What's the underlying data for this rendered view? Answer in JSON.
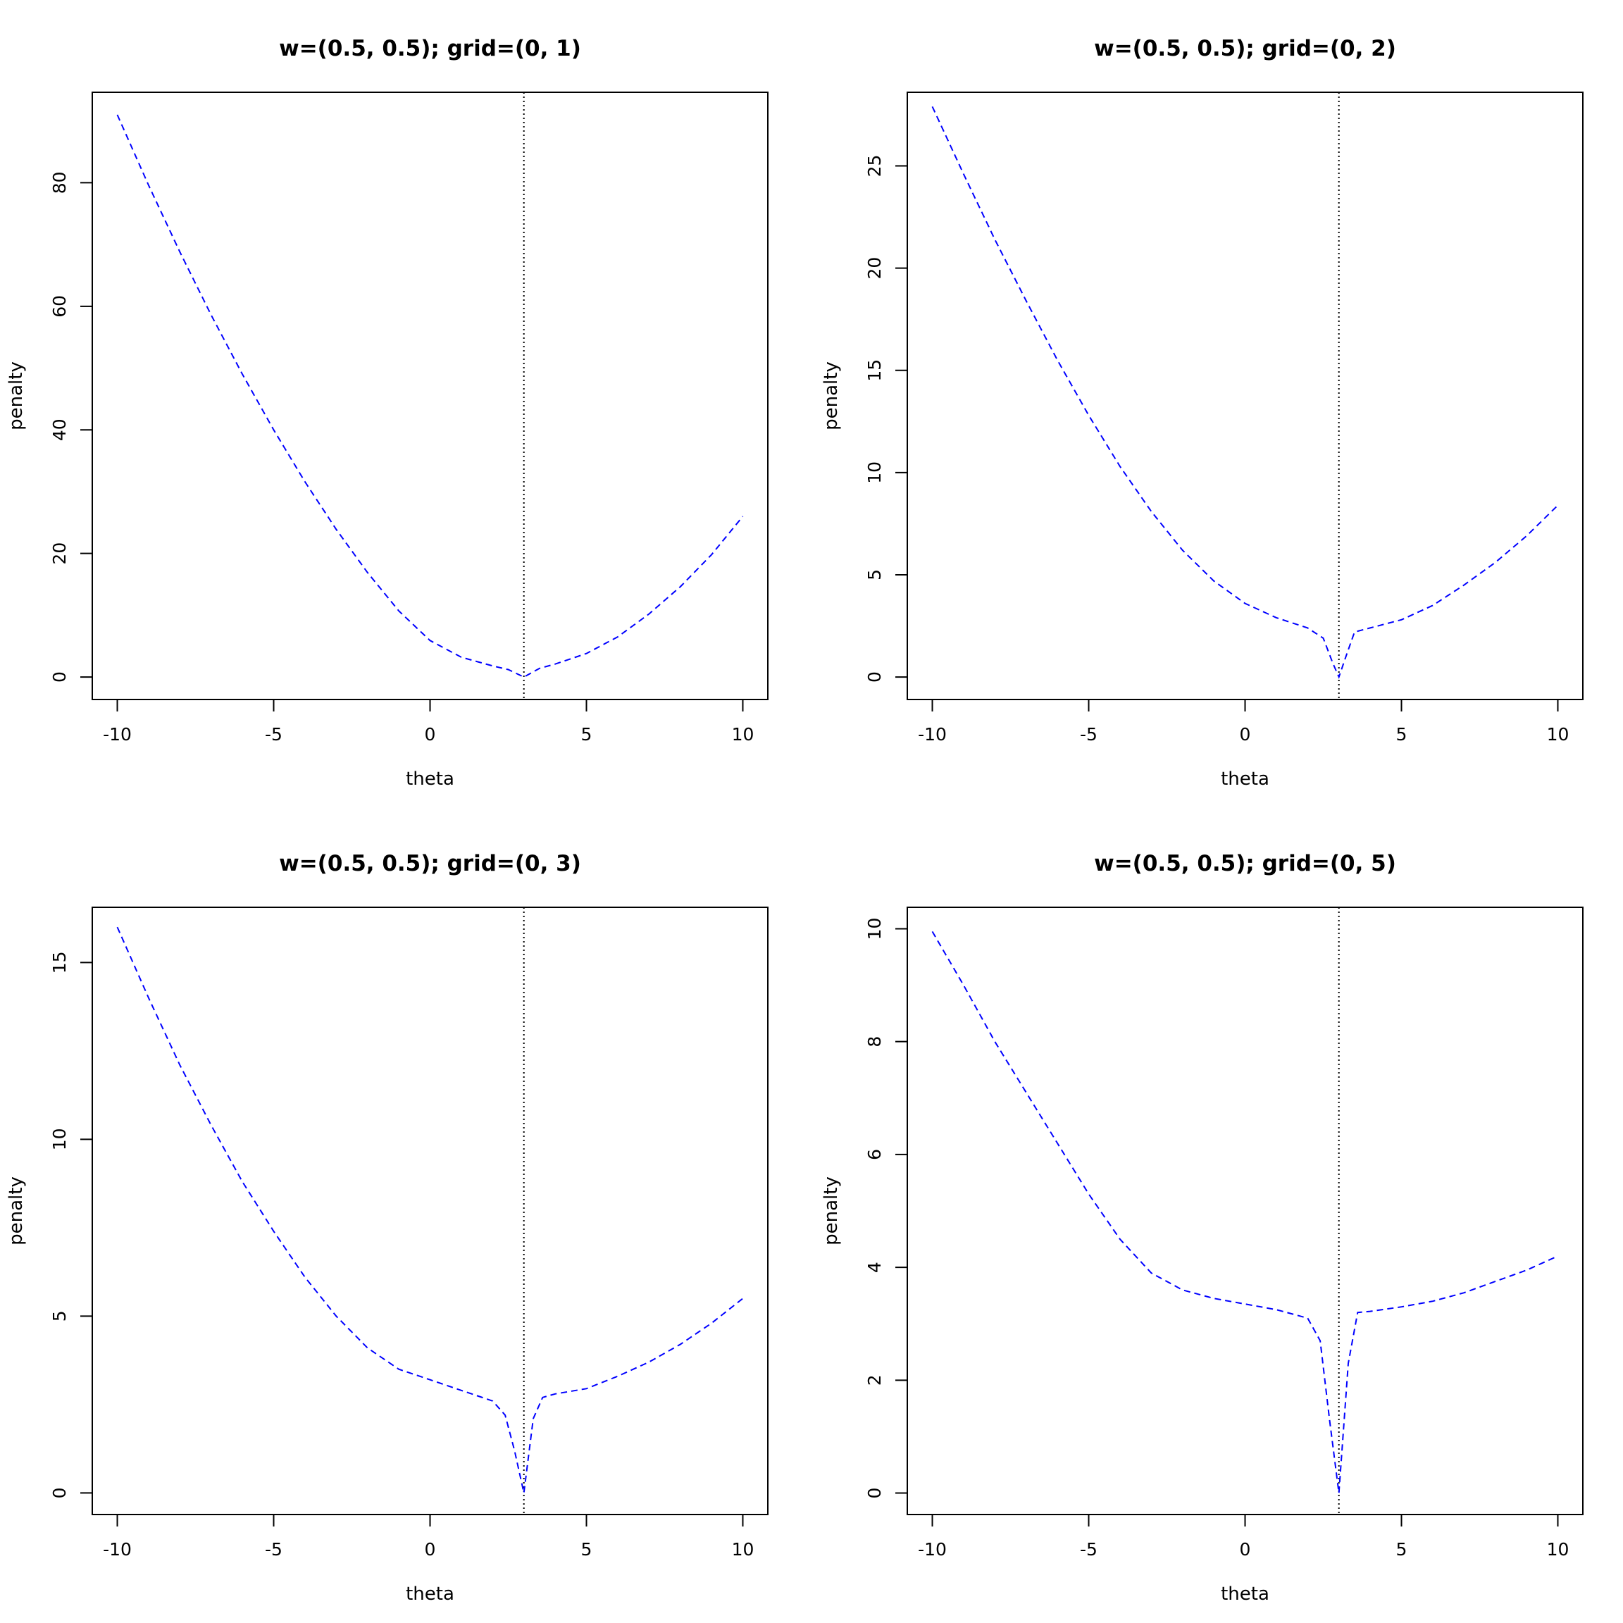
{
  "chart_data": [
    {
      "type": "line",
      "title": "w=(0.5, 0.5); grid=(0, 1)",
      "xlabel": "theta",
      "ylabel": "penalty",
      "xlim": [
        -10.8,
        10.8
      ],
      "ylim": [
        -3.64,
        94.64
      ],
      "xticks": [
        -10,
        -5,
        0,
        5,
        10
      ],
      "yticks": [
        0,
        20,
        40,
        60,
        80
      ],
      "vline": 3,
      "series": [
        {
          "color": "#0000ff",
          "x": [
            -10,
            -9,
            -8,
            -7,
            -6,
            -5,
            -4,
            -3,
            -2,
            -1,
            0,
            1,
            2,
            2.5,
            3,
            3.5,
            4,
            5,
            6,
            7,
            8,
            9,
            10
          ],
          "y": [
            91,
            79.6,
            68.8,
            58.6,
            49,
            40,
            31.6,
            23.9,
            16.9,
            10.7,
            5.9,
            3.2,
            1.8,
            1.2,
            0,
            1.4,
            2.1,
            3.8,
            6.5,
            10.2,
            14.6,
            19.8,
            26
          ]
        }
      ]
    },
    {
      "type": "line",
      "title": "w=(0.5, 0.5); grid=(0, 2)",
      "xlabel": "theta",
      "ylabel": "penalty",
      "xlim": [
        -10.8,
        10.8
      ],
      "ylim": [
        -1.1,
        28.6
      ],
      "xticks": [
        -10,
        -5,
        0,
        5,
        10
      ],
      "yticks": [
        0,
        5,
        10,
        15,
        20,
        25
      ],
      "vline": 3,
      "series": [
        {
          "color": "#0000ff",
          "x": [
            -10,
            -9,
            -8,
            -7,
            -6,
            -5,
            -4,
            -3,
            -2,
            -1,
            0,
            1,
            2,
            2.5,
            2.8,
            3,
            3.2,
            3.5,
            4,
            5,
            6,
            7,
            8,
            9,
            10
          ],
          "y": [
            27.9,
            24.6,
            21.4,
            18.4,
            15.5,
            12.8,
            10.3,
            8.1,
            6.2,
            4.7,
            3.6,
            2.9,
            2.4,
            1.9,
            0.7,
            0,
            0.9,
            2.2,
            2.4,
            2.8,
            3.5,
            4.5,
            5.6,
            6.9,
            8.4
          ]
        }
      ]
    },
    {
      "type": "line",
      "title": "w=(0.5, 0.5); grid=(0, 3)",
      "xlabel": "theta",
      "ylabel": "penalty",
      "xlim": [
        -10.8,
        10.8
      ],
      "ylim": [
        -0.61,
        16.56
      ],
      "xticks": [
        -10,
        -5,
        0,
        5,
        10
      ],
      "yticks": [
        0,
        5,
        10,
        15
      ],
      "vline": 3,
      "series": [
        {
          "color": "#0000ff",
          "x": [
            -10,
            -9,
            -8,
            -7,
            -6,
            -5,
            -4,
            -3,
            -2,
            -1,
            0,
            1,
            2,
            2.4,
            2.7,
            3,
            3.3,
            3.6,
            4,
            5,
            6,
            7,
            8,
            9,
            10
          ],
          "y": [
            16,
            14,
            12.1,
            10.4,
            8.8,
            7.4,
            6.1,
            5,
            4.1,
            3.5,
            3.2,
            2.9,
            2.6,
            2.2,
            1.2,
            0,
            2.1,
            2.7,
            2.8,
            2.95,
            3.3,
            3.7,
            4.2,
            4.8,
            5.5
          ]
        }
      ]
    },
    {
      "type": "line",
      "title": "w=(0.5, 0.5); grid=(0, 5)",
      "xlabel": "theta",
      "ylabel": "penalty",
      "xlim": [
        -10.8,
        10.8
      ],
      "ylim": [
        -0.38,
        10.38
      ],
      "xticks": [
        -10,
        -5,
        0,
        5,
        10
      ],
      "yticks": [
        0,
        2,
        4,
        6,
        8,
        10
      ],
      "vline": 3,
      "series": [
        {
          "color": "#0000ff",
          "x": [
            -10,
            -9,
            -8,
            -7,
            -6,
            -5,
            -4,
            -3,
            -2,
            -1,
            0,
            1,
            2,
            2.4,
            2.7,
            3,
            3.3,
            3.6,
            4,
            5,
            6,
            7,
            8,
            9,
            10
          ],
          "y": [
            9.95,
            9,
            8,
            7.1,
            6.2,
            5.3,
            4.5,
            3.9,
            3.6,
            3.45,
            3.35,
            3.25,
            3.1,
            2.7,
            1.3,
            0,
            2.3,
            3.2,
            3.22,
            3.3,
            3.4,
            3.55,
            3.75,
            3.95,
            4.2
          ]
        }
      ]
    }
  ]
}
